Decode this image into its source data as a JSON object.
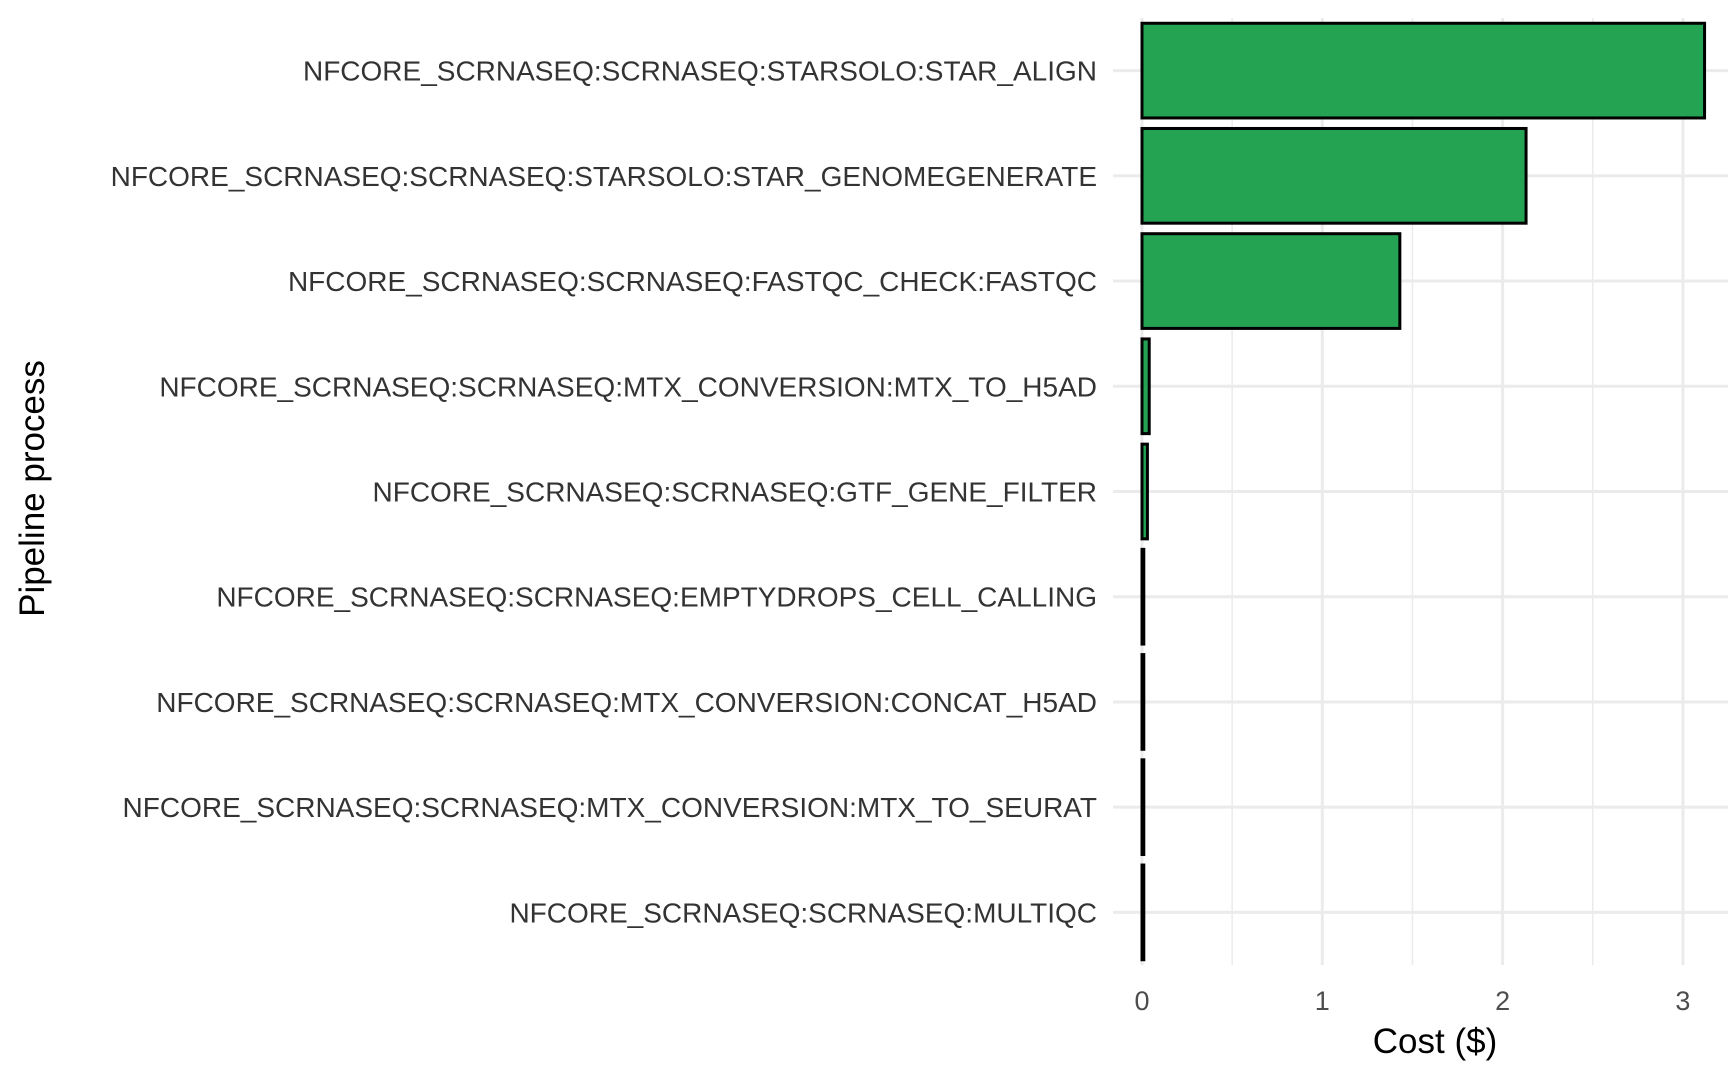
{
  "chart_data": {
    "type": "bar",
    "orientation": "horizontal",
    "categories": [
      "NFCORE_SCRNASEQ:SCRNASEQ:STARSOLO:STAR_ALIGN",
      "NFCORE_SCRNASEQ:SCRNASEQ:STARSOLO:STAR_GENOMEGENERATE",
      "NFCORE_SCRNASEQ:SCRNASEQ:FASTQC_CHECK:FASTQC",
      "NFCORE_SCRNASEQ:SCRNASEQ:MTX_CONVERSION:MTX_TO_H5AD",
      "NFCORE_SCRNASEQ:SCRNASEQ:GTF_GENE_FILTER",
      "NFCORE_SCRNASEQ:SCRNASEQ:EMPTYDROPS_CELL_CALLING",
      "NFCORE_SCRNASEQ:SCRNASEQ:MTX_CONVERSION:CONCAT_H5AD",
      "NFCORE_SCRNASEQ:SCRNASEQ:MTX_CONVERSION:MTX_TO_SEURAT",
      "NFCORE_SCRNASEQ:SCRNASEQ:MULTIQC"
    ],
    "values": [
      3.12,
      2.13,
      1.43,
      0.04,
      0.03,
      0.01,
      0.01,
      0.01,
      0.01
    ],
    "xlabel": "Cost ($)",
    "ylabel": "Pipeline process",
    "xlim": [
      0,
      3.25
    ],
    "xticks": [
      0,
      1,
      2,
      3
    ],
    "grid": true,
    "bar_color": "#24a453",
    "bar_edge_color": "#000000",
    "grid_color": "#ebebeb"
  }
}
